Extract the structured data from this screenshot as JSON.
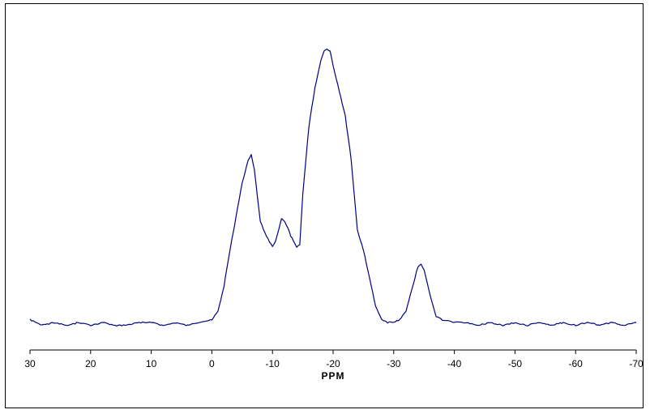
{
  "chart_data": {
    "type": "line",
    "title": "",
    "xlabel": "PPM",
    "ylabel": "",
    "xlim": [
      30,
      -70
    ],
    "ylim": [
      0,
      100
    ],
    "x_reversed": true,
    "grid": false,
    "legend": "none",
    "x_ticks": [
      30,
      20,
      10,
      0,
      -10,
      -20,
      -30,
      -40,
      -50,
      -60,
      -70
    ],
    "x_tick_labels": [
      "30",
      "20",
      "10",
      "0",
      "-10",
      "-20",
      "-30",
      "-40",
      "-50",
      "-60",
      "-70"
    ],
    "line_color": "#000080",
    "series": [
      {
        "x": [
          30,
          28,
          26,
          24,
          22,
          20,
          18,
          16,
          14,
          12,
          10,
          8,
          6,
          4,
          2,
          0,
          -1,
          -2,
          -3,
          -4,
          -5,
          -6,
          -6.5,
          -7,
          -8,
          -9,
          -10,
          -10.5,
          -11,
          -11.5,
          -12,
          -12.5,
          -13,
          -14,
          -14.5,
          -15,
          -16,
          -17,
          -18,
          -18.5,
          -19,
          -19.5,
          -20,
          -21,
          -22,
          -23,
          -24,
          -25,
          -26,
          -27,
          -28,
          -29,
          -30,
          -31,
          -32,
          -33,
          -33.5,
          -34,
          -34.5,
          -35,
          -36,
          -37,
          -38,
          -40,
          -42,
          -44,
          -46,
          -48,
          -50,
          -52,
          -54,
          -56,
          -58,
          -60,
          -62,
          -64,
          -66,
          -68,
          -70
        ],
        "y": [
          3,
          1,
          2,
          1,
          2,
          1,
          2,
          1,
          1,
          2,
          2,
          1,
          2,
          1,
          2,
          3,
          6,
          15,
          28,
          40,
          52,
          60,
          62,
          57,
          38,
          33,
          29,
          31,
          35,
          39,
          38,
          36,
          33,
          29,
          30,
          48,
          72,
          86,
          96,
          99,
          100,
          99,
          94,
          85,
          76,
          60,
          35,
          28,
          18,
          8,
          3,
          2,
          2,
          3,
          6,
          14,
          18,
          22,
          23,
          21,
          12,
          4,
          3,
          2,
          2,
          1,
          2,
          1,
          2,
          1,
          2,
          1,
          2,
          1,
          2,
          1,
          2,
          1,
          2
        ]
      }
    ]
  }
}
